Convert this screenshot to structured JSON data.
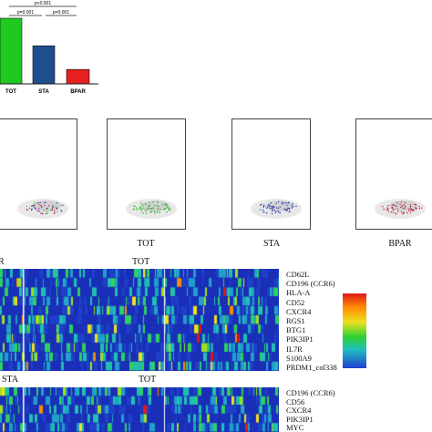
{
  "colors": {
    "tot": "#1fc91f",
    "sta": "#1f4e8c",
    "bpar": "#e62020"
  },
  "chart_data": {
    "type": "bar",
    "categories": [
      "TOT",
      "STA",
      "BPAR"
    ],
    "values": [
      100,
      58,
      22
    ],
    "ylim": [
      0,
      100
    ],
    "annotations": [
      "p<0.001",
      "p=0.001",
      "p=0.001"
    ]
  },
  "umap": {
    "labels": [
      "TOT",
      "STA",
      "BPAR"
    ]
  },
  "heatmap1": {
    "header_left": "R",
    "header_mid": "TOT",
    "genes": [
      "CD62L",
      "CD196 (CCR6)",
      "HLA-A",
      "CD52",
      "CXCR4",
      "RGS1",
      "BTG1",
      "PIK3IP1",
      "IL7R",
      "S100A9",
      "PRDM1_col338"
    ]
  },
  "heatmap2": {
    "header_left": "STA",
    "header_mid": "TOT",
    "genes": [
      "CD196 (CCR6)",
      "CD56",
      "CXCR4",
      "PIK3IP1",
      "MYC"
    ]
  }
}
